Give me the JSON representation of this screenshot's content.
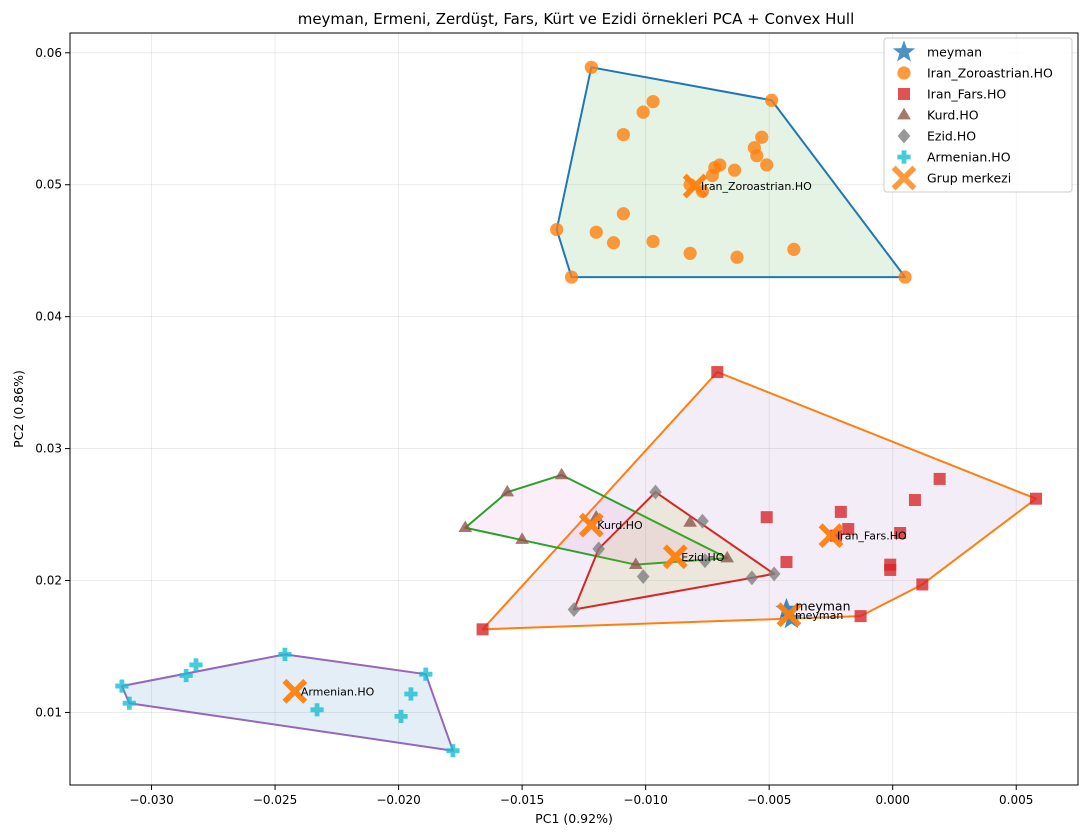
{
  "chart_data": {
    "type": "scatter",
    "title": "meyman, Ermeni, Zerdüşt, Fars, Kürt ve Ezidi örnekleri PCA + Convex Hull",
    "xlabel": "PC1 (0.92%)",
    "ylabel": "PC2 (0.86%)",
    "xlim": [
      -0.0333,
      0.0075
    ],
    "ylim": [
      0.0045,
      0.0615
    ],
    "xticks": [
      -0.03,
      -0.025,
      -0.02,
      -0.015,
      -0.01,
      -0.005,
      0.0,
      0.005
    ],
    "xtick_labels": [
      "−0.030",
      "−0.025",
      "−0.020",
      "−0.015",
      "−0.010",
      "−0.005",
      "0.000",
      "0.005"
    ],
    "yticks": [
      0.01,
      0.02,
      0.03,
      0.04,
      0.05,
      0.06
    ],
    "ytick_labels": [
      "0.01",
      "0.02",
      "0.03",
      "0.04",
      "0.05",
      "0.06"
    ],
    "grid": true,
    "legend_position": "top-right",
    "legend": [
      {
        "label": "meyman",
        "marker": "star",
        "color": "#1f77b4"
      },
      {
        "label": "Iran_Zoroastrian.HO",
        "marker": "circle",
        "color": "#ff7f0e"
      },
      {
        "label": "Iran_Fars.HO",
        "marker": "square",
        "color": "#d62728"
      },
      {
        "label": "Kurd.HO",
        "marker": "triangle",
        "color": "#8c564b"
      },
      {
        "label": "Ezid.HO",
        "marker": "diamond",
        "color": "#7f7f7f"
      },
      {
        "label": "Armenian.HO",
        "marker": "plus",
        "color": "#17becf"
      },
      {
        "label": "Grup merkezi",
        "marker": "x",
        "color": "#ff7f0e"
      }
    ],
    "series": [
      {
        "name": "Iran_Zoroastrian.HO",
        "marker": "circle",
        "color": "#ff7f0e",
        "hull_color": "#1f77b4",
        "hull_fill": "#2ca02c",
        "points": [
          [
            -0.0122,
            0.0589
          ],
          [
            -0.0049,
            0.0564
          ],
          [
            -0.0097,
            0.0563
          ],
          [
            -0.0101,
            0.0555
          ],
          [
            -0.0109,
            0.0538
          ],
          [
            -0.0053,
            0.0536
          ],
          [
            -0.0056,
            0.0528
          ],
          [
            -0.0055,
            0.0522
          ],
          [
            -0.007,
            0.0515
          ],
          [
            -0.0072,
            0.0513
          ],
          [
            -0.0064,
            0.0511
          ],
          [
            -0.0051,
            0.0515
          ],
          [
            -0.0073,
            0.0507
          ],
          [
            -0.0082,
            0.05
          ],
          [
            -0.0077,
            0.0495
          ],
          [
            -0.0109,
            0.0478
          ],
          [
            -0.0136,
            0.0466
          ],
          [
            -0.012,
            0.0464
          ],
          [
            -0.0113,
            0.0456
          ],
          [
            -0.0097,
            0.0457
          ],
          [
            -0.004,
            0.0451
          ],
          [
            -0.0082,
            0.0448
          ],
          [
            -0.0063,
            0.0445
          ],
          [
            -0.013,
            0.043
          ],
          [
            0.0005,
            0.043
          ]
        ],
        "hull": [
          [
            -0.0122,
            0.0589
          ],
          [
            -0.0049,
            0.0564
          ],
          [
            0.0005,
            0.043
          ],
          [
            -0.013,
            0.043
          ],
          [
            -0.0136,
            0.0466
          ]
        ],
        "centroid": [
          -0.008,
          0.0499
        ],
        "centroid_label": "Iran_Zoroastrian.HO"
      },
      {
        "name": "Iran_Fars.HO",
        "marker": "square",
        "color": "#d62728",
        "hull_color": "#ff7f0e",
        "hull_fill": "#9467bd",
        "points": [
          [
            -0.0071,
            0.0358
          ],
          [
            0.0058,
            0.0262
          ],
          [
            0.0019,
            0.0277
          ],
          [
            0.0009,
            0.0261
          ],
          [
            -0.0021,
            0.0252
          ],
          [
            -0.0051,
            0.0248
          ],
          [
            -0.0018,
            0.0239
          ],
          [
            0.0003,
            0.0236
          ],
          [
            -0.0023,
            0.0234
          ],
          [
            -0.0043,
            0.0214
          ],
          [
            -0.0001,
            0.0212
          ],
          [
            -0.0001,
            0.0208
          ],
          [
            0.0012,
            0.0197
          ],
          [
            -0.0166,
            0.0163
          ],
          [
            -0.0013,
            0.0173
          ]
        ],
        "hull": [
          [
            -0.0071,
            0.0358
          ],
          [
            0.0058,
            0.0262
          ],
          [
            0.0012,
            0.0197
          ],
          [
            -0.0013,
            0.0173
          ],
          [
            -0.0166,
            0.0163
          ]
        ],
        "centroid": [
          -0.0025,
          0.0234
        ],
        "centroid_label": "Iran_Fars.HO"
      },
      {
        "name": "Kurd.HO",
        "marker": "triangle",
        "color": "#8c564b",
        "hull_color": "#2ca02c",
        "hull_fill": "#e377c2",
        "points": [
          [
            -0.0134,
            0.028
          ],
          [
            -0.0156,
            0.0267
          ],
          [
            -0.012,
            0.0248
          ],
          [
            -0.0082,
            0.0244
          ],
          [
            -0.0173,
            0.024
          ],
          [
            -0.015,
            0.0231
          ],
          [
            -0.0067,
            0.0217
          ],
          [
            -0.0104,
            0.0212
          ]
        ],
        "hull": [
          [
            -0.0173,
            0.024
          ],
          [
            -0.0156,
            0.0267
          ],
          [
            -0.0134,
            0.028
          ],
          [
            -0.0067,
            0.0217
          ],
          [
            -0.0104,
            0.0212
          ]
        ],
        "centroid": [
          -0.0122,
          0.0242
        ],
        "centroid_label": "Kurd.HO"
      },
      {
        "name": "Ezid.HO",
        "marker": "diamond",
        "color": "#7f7f7f",
        "hull_color": "#d62728",
        "hull_fill": "#bcbd22",
        "points": [
          [
            -0.0096,
            0.0267
          ],
          [
            -0.0077,
            0.0245
          ],
          [
            -0.0119,
            0.0224
          ],
          [
            -0.0101,
            0.0203
          ],
          [
            -0.0057,
            0.0202
          ],
          [
            -0.0048,
            0.0205
          ],
          [
            -0.0129,
            0.0178
          ],
          [
            -0.0076,
            0.0215
          ]
        ],
        "hull": [
          [
            -0.0096,
            0.0267
          ],
          [
            -0.0048,
            0.0205
          ],
          [
            -0.0129,
            0.0178
          ],
          [
            -0.0119,
            0.0224
          ]
        ],
        "centroid": [
          -0.0088,
          0.0218
        ],
        "centroid_label": "Ezid.HO"
      },
      {
        "name": "Armenian.HO",
        "marker": "plus",
        "color": "#17becf",
        "hull_color": "#9467bd",
        "hull_fill": "#1f77b4",
        "points": [
          [
            -0.0246,
            0.0144
          ],
          [
            -0.0282,
            0.0136
          ],
          [
            -0.0286,
            0.0128
          ],
          [
            -0.0189,
            0.0129
          ],
          [
            -0.0312,
            0.012
          ],
          [
            -0.0195,
            0.0114
          ],
          [
            -0.0309,
            0.0107
          ],
          [
            -0.0233,
            0.0102
          ],
          [
            -0.0199,
            0.0097
          ],
          [
            -0.0178,
            0.0071
          ]
        ],
        "hull": [
          [
            -0.0312,
            0.012
          ],
          [
            -0.0246,
            0.0144
          ],
          [
            -0.0189,
            0.0129
          ],
          [
            -0.0178,
            0.0071
          ],
          [
            -0.0309,
            0.0107
          ]
        ],
        "centroid": [
          -0.0242,
          0.0116
        ],
        "centroid_label": "Armenian.HO"
      }
    ],
    "meyman": {
      "points": [
        [
          -0.0043,
          0.0178
        ],
        [
          -0.0041,
          0.0171
        ]
      ],
      "centroid": [
        -0.0042,
        0.0174
      ],
      "labels": [
        "meyman",
        "meyman"
      ]
    }
  }
}
